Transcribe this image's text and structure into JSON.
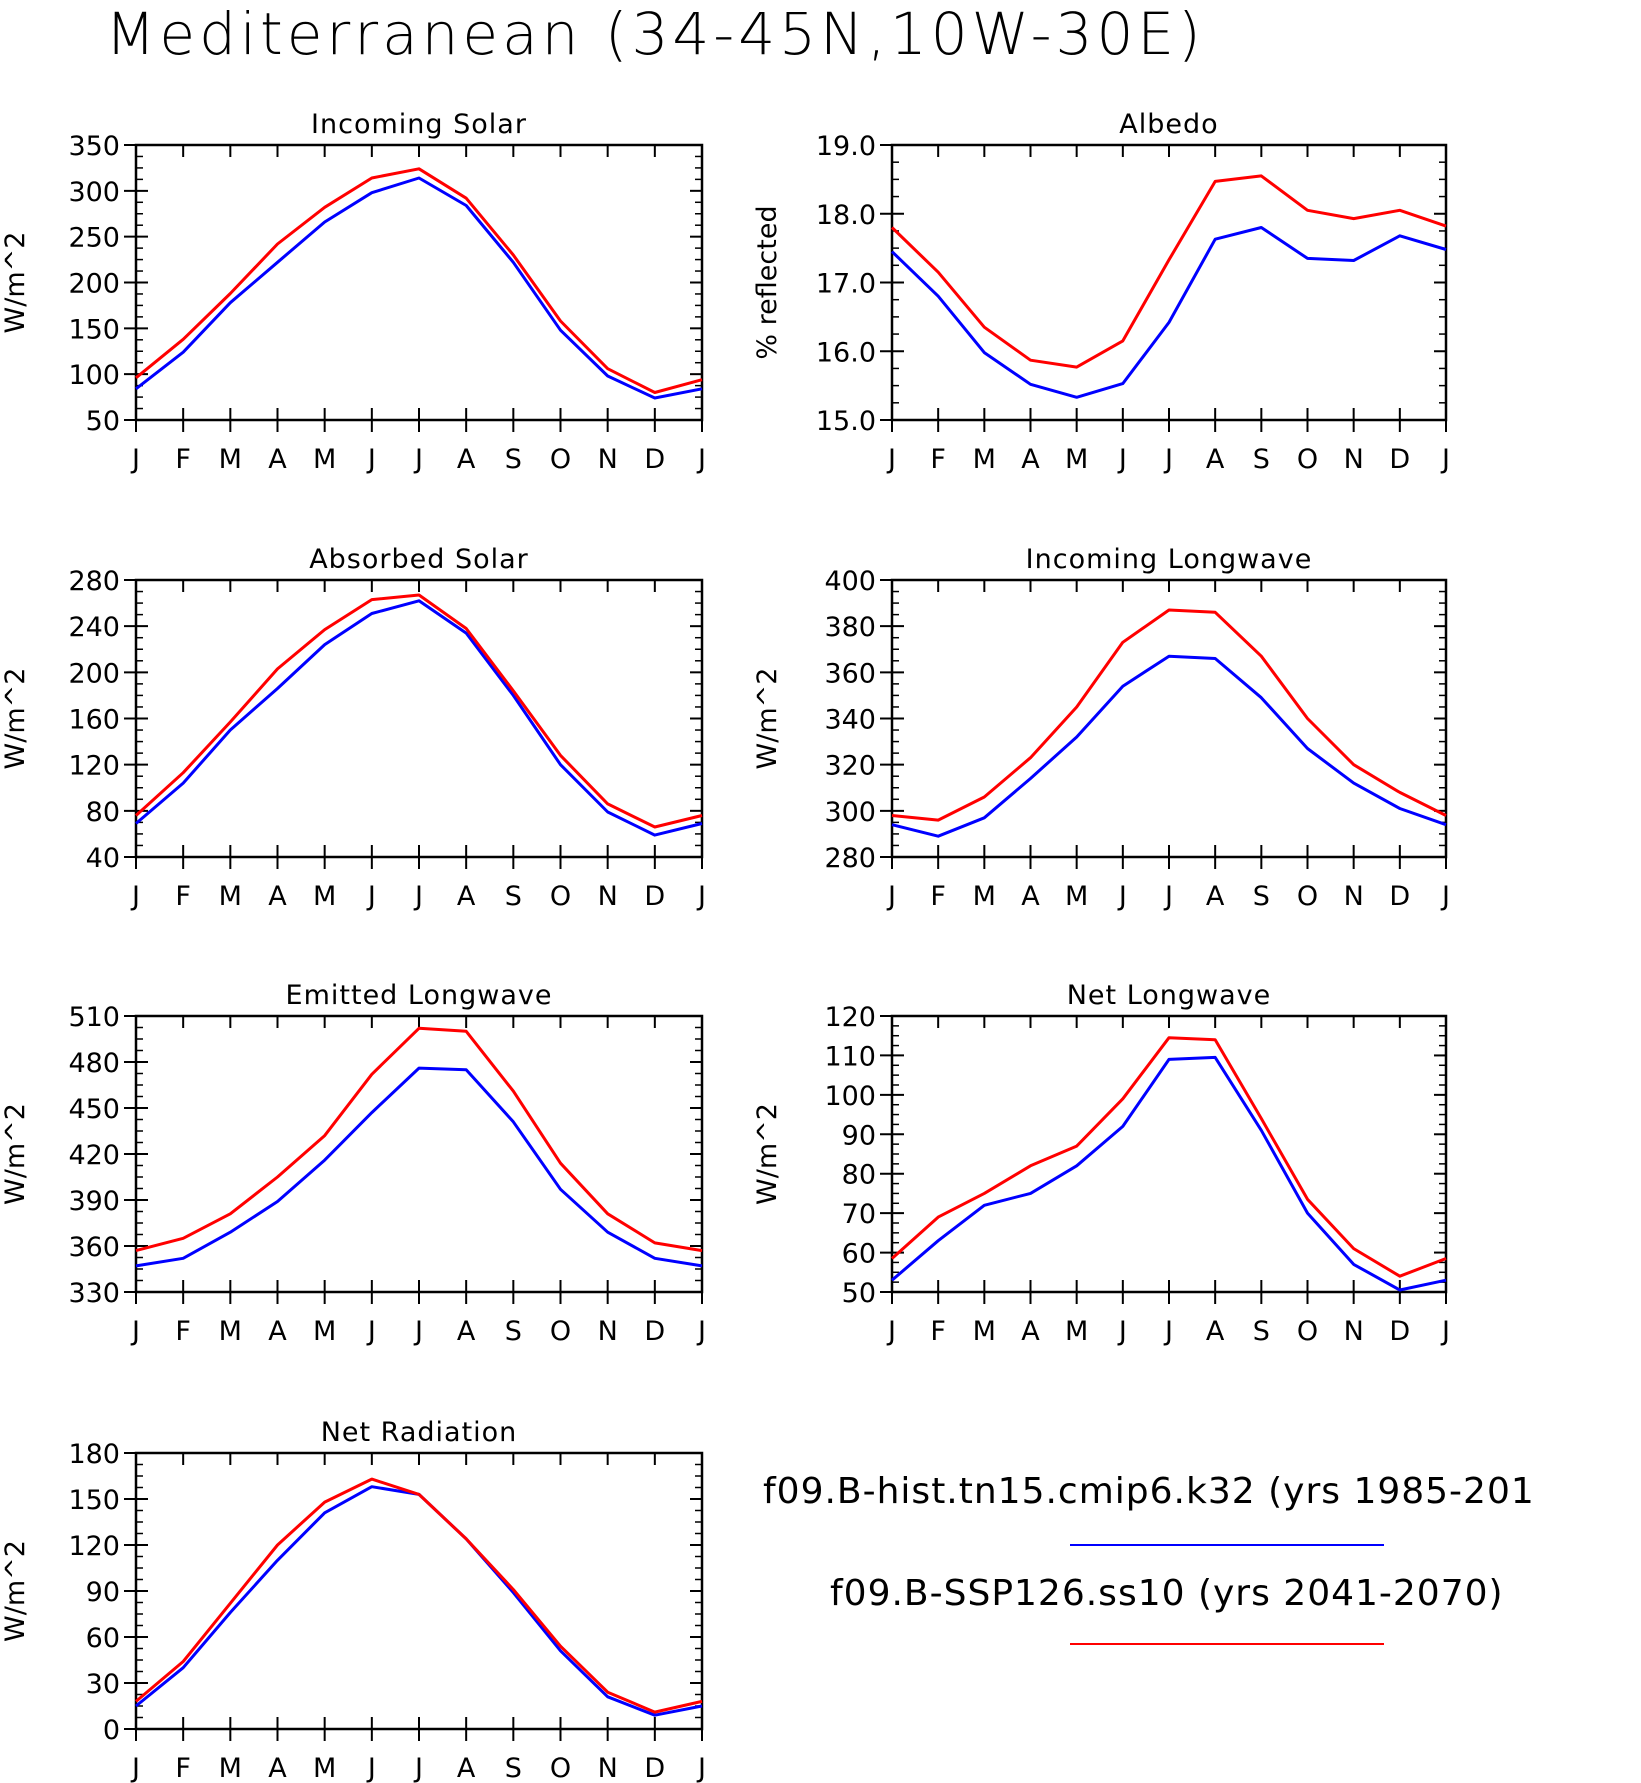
{
  "title": "Mediterranean (34-45N,10W-30E)",
  "colors": {
    "series_1": "#0000ff",
    "series_2": "#ff0000",
    "axis": "#000000"
  },
  "legend": [
    {
      "label": "f09.B-hist.tn15.cmip6.k32 (yrs 1985-201",
      "color": "#0000ff"
    },
    {
      "label": "f09.B-SSP126.ss10 (yrs 2041-2070)",
      "color": "#ff0000"
    }
  ],
  "chart_data": [
    {
      "type": "line",
      "title": "Incoming Solar",
      "ylabel": "W/m^2",
      "categories": [
        "J",
        "F",
        "M",
        "A",
        "M",
        "J",
        "J",
        "A",
        "S",
        "O",
        "N",
        "D",
        "J"
      ],
      "ylim": [
        50,
        350
      ],
      "yticks": [
        "50",
        "100",
        "150",
        "200",
        "250",
        "300",
        "350"
      ],
      "series": [
        {
          "color": "#0000ff",
          "values": [
            84,
            124,
            178,
            222,
            266,
            298,
            314,
            284,
            222,
            148,
            98,
            74,
            84
          ]
        },
        {
          "color": "#ff0000",
          "values": [
            96,
            138,
            188,
            242,
            282,
            314,
            324,
            292,
            230,
            158,
            106,
            80,
            94
          ]
        }
      ]
    },
    {
      "type": "line",
      "title": "Albedo",
      "ylabel": "% reflected",
      "categories": [
        "J",
        "F",
        "M",
        "A",
        "M",
        "J",
        "J",
        "A",
        "S",
        "O",
        "N",
        "D",
        "J"
      ],
      "ylim": [
        15.0,
        19.0
      ],
      "yticks": [
        "15.0",
        "16.0",
        "17.0",
        "18.0",
        "19.0"
      ],
      "series": [
        {
          "color": "#0000ff",
          "values": [
            17.45,
            16.8,
            15.98,
            15.52,
            15.33,
            15.53,
            16.42,
            17.63,
            17.8,
            17.35,
            17.32,
            17.68,
            17.48
          ]
        },
        {
          "color": "#ff0000",
          "values": [
            17.8,
            17.15,
            16.35,
            15.87,
            15.77,
            16.15,
            17.33,
            18.47,
            18.55,
            18.05,
            17.93,
            18.05,
            17.82
          ]
        }
      ]
    },
    {
      "type": "line",
      "title": "Absorbed Solar",
      "ylabel": "W/m^2",
      "categories": [
        "J",
        "F",
        "M",
        "A",
        "M",
        "J",
        "J",
        "A",
        "S",
        "O",
        "N",
        "D",
        "J"
      ],
      "ylim": [
        40,
        280
      ],
      "yticks": [
        "40",
        "80",
        "120",
        "160",
        "200",
        "240",
        "280"
      ],
      "series": [
        {
          "color": "#0000ff",
          "values": [
            69,
            104,
            150,
            186,
            224,
            251,
            262,
            234,
            180,
            120,
            79,
            59,
            69
          ]
        },
        {
          "color": "#ff0000",
          "values": [
            76,
            113,
            157,
            203,
            237,
            263,
            267,
            238,
            184,
            128,
            86,
            66,
            76
          ]
        }
      ]
    },
    {
      "type": "line",
      "title": "Incoming Longwave",
      "ylabel": "W/m^2",
      "categories": [
        "J",
        "F",
        "M",
        "A",
        "M",
        "J",
        "J",
        "A",
        "S",
        "O",
        "N",
        "D",
        "J"
      ],
      "ylim": [
        280,
        400
      ],
      "yticks": [
        "280",
        "300",
        "320",
        "340",
        "360",
        "380",
        "400"
      ],
      "series": [
        {
          "color": "#0000ff",
          "values": [
            294,
            289,
            297,
            314,
            332,
            354,
            367,
            366,
            349,
            327,
            312,
            301,
            294
          ]
        },
        {
          "color": "#ff0000",
          "values": [
            298,
            296,
            306,
            323,
            345,
            373,
            387,
            386,
            367,
            340,
            320,
            308,
            298
          ]
        }
      ]
    },
    {
      "type": "line",
      "title": "Emitted Longwave",
      "ylabel": "W/m^2",
      "categories": [
        "J",
        "F",
        "M",
        "A",
        "M",
        "J",
        "J",
        "A",
        "S",
        "O",
        "N",
        "D",
        "J"
      ],
      "ylim": [
        330,
        510
      ],
      "yticks": [
        "330",
        "360",
        "390",
        "420",
        "450",
        "480",
        "510"
      ],
      "series": [
        {
          "color": "#0000ff",
          "values": [
            347,
            352,
            369,
            389,
            416,
            447,
            476,
            475,
            441,
            397,
            369,
            352,
            347
          ]
        },
        {
          "color": "#ff0000",
          "values": [
            357,
            365,
            381,
            405,
            432,
            472,
            502,
            500,
            461,
            414,
            381,
            362,
            357
          ]
        }
      ]
    },
    {
      "type": "line",
      "title": "Net Longwave",
      "ylabel": "W/m^2",
      "categories": [
        "J",
        "F",
        "M",
        "A",
        "M",
        "J",
        "J",
        "A",
        "S",
        "O",
        "N",
        "D",
        "J"
      ],
      "ylim": [
        50,
        120
      ],
      "yticks": [
        "50",
        "60",
        "70",
        "80",
        "90",
        "100",
        "110",
        "120"
      ],
      "series": [
        {
          "color": "#0000ff",
          "values": [
            53,
            63,
            72,
            75,
            82,
            92,
            109,
            109.5,
            91,
            70,
            57,
            50.5,
            53
          ]
        },
        {
          "color": "#ff0000",
          "values": [
            58.5,
            69,
            75,
            82,
            87,
            99,
            114.5,
            114,
            94,
            73.5,
            61,
            54,
            58.5
          ]
        }
      ]
    },
    {
      "type": "line",
      "title": "Net Radiation",
      "ylabel": "W/m^2",
      "categories": [
        "J",
        "F",
        "M",
        "A",
        "M",
        "J",
        "J",
        "A",
        "S",
        "O",
        "N",
        "D",
        "J"
      ],
      "ylim": [
        0,
        180
      ],
      "yticks": [
        "0",
        "30",
        "60",
        "90",
        "120",
        "150",
        "180"
      ],
      "series": [
        {
          "color": "#0000ff",
          "values": [
            15,
            40,
            76,
            110,
            141,
            158,
            153,
            124,
            89,
            51,
            21,
            9,
            15
          ]
        },
        {
          "color": "#ff0000",
          "values": [
            18,
            44,
            82,
            120,
            148,
            163,
            153,
            124,
            91,
            54,
            24,
            11,
            18
          ]
        }
      ]
    }
  ]
}
